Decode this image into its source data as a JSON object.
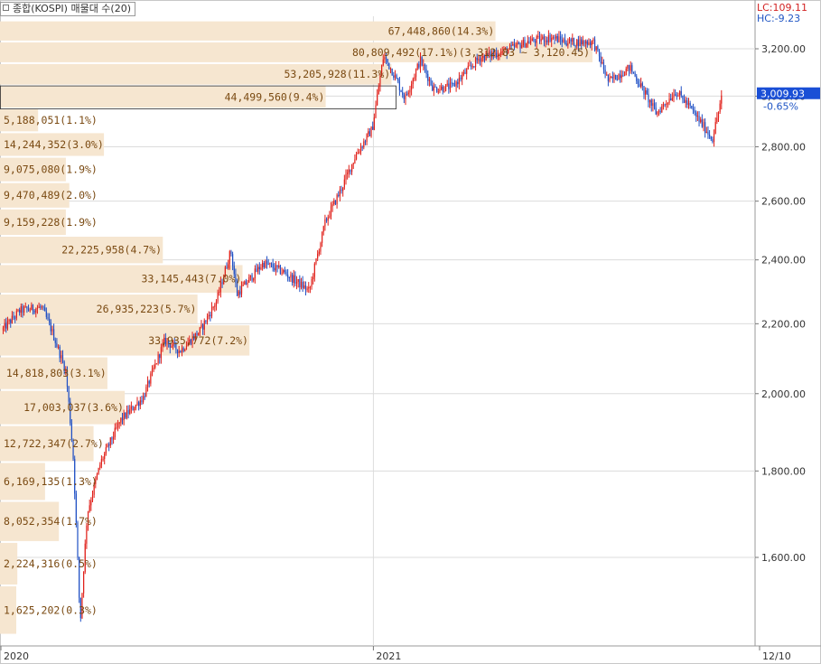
{
  "header": {
    "title": "종합(KOSPI) 매물대 수(20)",
    "lc_label": "LC:109.11",
    "hc_label": "HC:-9.23"
  },
  "price_badge": {
    "value": "3,009.93",
    "change": "-0.65%"
  },
  "x_axis": {
    "labels": [
      "2020",
      "2021",
      "12/10"
    ]
  },
  "colors": {
    "profile_bar": "#f6e6d0",
    "profile_text": "#7a4a12",
    "up_candle": "#e0201a",
    "down_candle": "#1f4fc4",
    "badge": "#1a4fd6",
    "lc": "#d22222",
    "hc": "#1f55c4",
    "grid": "#dcdcdc"
  },
  "chart_data": {
    "type": "line",
    "title": "종합(KOSPI) 매물대 수(20)",
    "ylim": [
      1440,
      3290
    ],
    "y_ticks": [
      1600,
      1800,
      2000,
      2200,
      2400,
      2600,
      2800,
      3000,
      3200
    ],
    "y_tick_labels": [
      "1,600.00",
      "1,800.00",
      "2,000.00",
      "2,200.00",
      "2,400.00",
      "2,600.00",
      "2,800.00",
      "3,000.00",
      "3,200.00"
    ],
    "series": [
      {
        "name": "종합(KOSPI)",
        "x": [
          "2020-01-02",
          "2020-01-20",
          "2020-02-10",
          "2020-02-20",
          "2020-03-05",
          "2020-03-12",
          "2020-03-19",
          "2020-03-26",
          "2020-04-08",
          "2020-04-28",
          "2020-05-20",
          "2020-06-10",
          "2020-06-25",
          "2020-07-15",
          "2020-07-31",
          "2020-08-14",
          "2020-08-20",
          "2020-09-15",
          "2020-10-05",
          "2020-10-30",
          "2020-11-15",
          "2020-11-30",
          "2020-12-15",
          "2020-12-31",
          "2021-01-11",
          "2021-01-20",
          "2021-02-01",
          "2021-02-16",
          "2021-03-01",
          "2021-03-20",
          "2021-04-15",
          "2021-05-10",
          "2021-06-01",
          "2021-06-25",
          "2021-07-10",
          "2021-08-05",
          "2021-08-20",
          "2021-09-10",
          "2021-10-06",
          "2021-10-25",
          "2021-11-05",
          "2021-11-30",
          "2021-12-10"
        ],
        "values": [
          2180,
          2240,
          2250,
          2180,
          2060,
          1840,
          1460,
          1700,
          1820,
          1930,
          1990,
          2150,
          2120,
          2180,
          2270,
          2430,
          2290,
          2390,
          2360,
          2300,
          2530,
          2640,
          2770,
          2870,
          3170,
          3100,
          2990,
          3150,
          3030,
          3040,
          3160,
          3190,
          3230,
          3250,
          3230,
          3230,
          3060,
          3120,
          2930,
          3020,
          2970,
          2830,
          3009.93
        ]
      }
    ],
    "volume_profile": [
      {
        "label": "1,625,202(0.3%)",
        "low": 1440,
        "high": 1540,
        "share": 0.3
      },
      {
        "label": "2,224,316(0.5%)",
        "low": 1540,
        "high": 1634,
        "share": 0.5
      },
      {
        "label": "8,052,354(1.7%)",
        "low": 1634,
        "high": 1728,
        "share": 1.7
      },
      {
        "label": "6,169,135(1.3%)",
        "low": 1728,
        "high": 1822,
        "share": 1.3
      },
      {
        "label": "12,722,347(2.7%)",
        "low": 1822,
        "high": 1916,
        "share": 2.7
      },
      {
        "label": "17,003,037(3.6%)",
        "low": 1916,
        "high": 2010,
        "share": 3.6
      },
      {
        "label": "14,818,803(3.1%)",
        "low": 2010,
        "high": 2104,
        "share": 3.1
      },
      {
        "label": "33,935,772(7.2%)",
        "low": 2104,
        "high": 2198,
        "share": 7.2
      },
      {
        "label": "26,935,223(5.7%)",
        "low": 2198,
        "high": 2292,
        "share": 5.7
      },
      {
        "label": "33,145,443(7.0%)",
        "low": 2292,
        "high": 2386,
        "share": 7.0
      },
      {
        "label": "22,225,958(4.7%)",
        "low": 2386,
        "high": 2480,
        "share": 4.7
      },
      {
        "label": "9,159,228(1.9%)",
        "low": 2480,
        "high": 2574,
        "share": 1.9
      },
      {
        "label": "9,470,489(2.0%)",
        "low": 2574,
        "high": 2668,
        "share": 2.0
      },
      {
        "label": "9,075,080(1.9%)",
        "low": 2668,
        "high": 2762,
        "share": 1.9
      },
      {
        "label": "14,244,352(3.0%)",
        "low": 2762,
        "high": 2856,
        "share": 3.0
      },
      {
        "label": "5,188,051(1.1%)",
        "low": 2856,
        "high": 2950,
        "share": 1.1
      },
      {
        "label": "44,499,560(9.4%)",
        "low": 2950,
        "high": 3044,
        "share": 9.4
      },
      {
        "label": "53,205,928(11.3%)",
        "low": 3044,
        "high": 3138,
        "share": 11.3
      },
      {
        "label": "80,809,492(17.1%)(3,312.83 ~ 3,120.45)",
        "low": 3138,
        "high": 3232,
        "share": 17.1
      },
      {
        "label": "67,448,860(14.3%)",
        "low": 3232,
        "high": 3326,
        "share": 14.3
      }
    ]
  }
}
